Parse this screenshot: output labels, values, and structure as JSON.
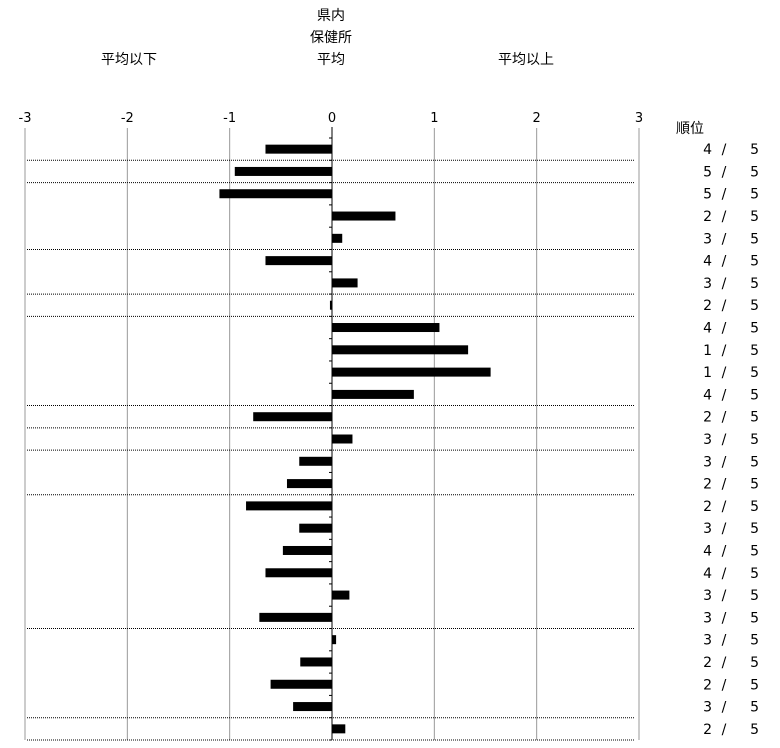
{
  "header": {
    "below_label": "平均以下",
    "center_line1": "県内",
    "center_line2": "保健所",
    "center_line3": "平均",
    "above_label": "平均以上"
  },
  "rank_header": "順位",
  "chart_data": {
    "type": "bar",
    "orientation": "horizontal",
    "xlim": [
      -3,
      3
    ],
    "x_ticks": [
      "-3",
      "-2",
      "-1",
      "0",
      "1",
      "2",
      "3"
    ],
    "grid": true,
    "values": [
      -0.65,
      -0.95,
      -1.1,
      0.62,
      0.1,
      -0.65,
      0.25,
      -0.02,
      1.05,
      1.33,
      1.55,
      0.8,
      -0.77,
      0.2,
      -0.32,
      -0.44,
      -0.84,
      -0.32,
      -0.48,
      -0.65,
      0.17,
      -0.71,
      0.04,
      -0.31,
      -0.6,
      -0.38,
      0.13
    ],
    "ranks": [
      4,
      5,
      5,
      2,
      3,
      4,
      3,
      2,
      4,
      1,
      1,
      4,
      2,
      3,
      3,
      2,
      2,
      3,
      4,
      4,
      3,
      3,
      3,
      2,
      2,
      3,
      2
    ],
    "rank_total": 5,
    "rank_separator": "/",
    "dotted_separators_after_row": [
      1,
      2,
      5,
      7,
      8,
      12,
      13,
      14,
      16,
      22,
      26,
      27
    ]
  },
  "colors": {
    "bar": "#000000",
    "grid": "#999999",
    "separator": "#000000"
  }
}
